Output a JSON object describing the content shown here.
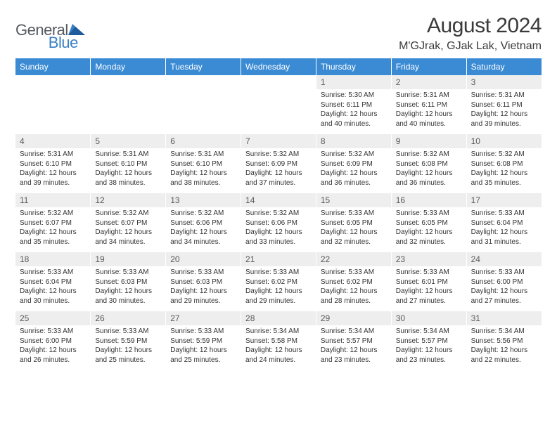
{
  "brand": {
    "part1": "General",
    "part2": "Blue"
  },
  "title": "August 2024",
  "location": "M'GJrak, GJak Lak, Vietnam",
  "colors": {
    "header_bg": "#3b8bd4",
    "header_text": "#ffffff",
    "num_bg": "#eeeeee",
    "num_text": "#5a5a5a",
    "body_text": "#333333",
    "brand_gray": "#555a5f",
    "brand_blue": "#3b7fc4",
    "page_bg": "#ffffff"
  },
  "typography": {
    "title_fontsize": 30,
    "location_fontsize": 16,
    "dayheader_fontsize": 12,
    "daynum_fontsize": 12,
    "body_fontsize": 10
  },
  "days": [
    "Sunday",
    "Monday",
    "Tuesday",
    "Wednesday",
    "Thursday",
    "Friday",
    "Saturday"
  ],
  "weeks": [
    {
      "nums": [
        "",
        "",
        "",
        "",
        "1",
        "2",
        "3"
      ],
      "cells": [
        null,
        null,
        null,
        null,
        {
          "sunrise": "5:30 AM",
          "sunset": "6:11 PM",
          "daylight": "12 hours and 40 minutes."
        },
        {
          "sunrise": "5:31 AM",
          "sunset": "6:11 PM",
          "daylight": "12 hours and 40 minutes."
        },
        {
          "sunrise": "5:31 AM",
          "sunset": "6:11 PM",
          "daylight": "12 hours and 39 minutes."
        }
      ]
    },
    {
      "nums": [
        "4",
        "5",
        "6",
        "7",
        "8",
        "9",
        "10"
      ],
      "cells": [
        {
          "sunrise": "5:31 AM",
          "sunset": "6:10 PM",
          "daylight": "12 hours and 39 minutes."
        },
        {
          "sunrise": "5:31 AM",
          "sunset": "6:10 PM",
          "daylight": "12 hours and 38 minutes."
        },
        {
          "sunrise": "5:31 AM",
          "sunset": "6:10 PM",
          "daylight": "12 hours and 38 minutes."
        },
        {
          "sunrise": "5:32 AM",
          "sunset": "6:09 PM",
          "daylight": "12 hours and 37 minutes."
        },
        {
          "sunrise": "5:32 AM",
          "sunset": "6:09 PM",
          "daylight": "12 hours and 36 minutes."
        },
        {
          "sunrise": "5:32 AM",
          "sunset": "6:08 PM",
          "daylight": "12 hours and 36 minutes."
        },
        {
          "sunrise": "5:32 AM",
          "sunset": "6:08 PM",
          "daylight": "12 hours and 35 minutes."
        }
      ]
    },
    {
      "nums": [
        "11",
        "12",
        "13",
        "14",
        "15",
        "16",
        "17"
      ],
      "cells": [
        {
          "sunrise": "5:32 AM",
          "sunset": "6:07 PM",
          "daylight": "12 hours and 35 minutes."
        },
        {
          "sunrise": "5:32 AM",
          "sunset": "6:07 PM",
          "daylight": "12 hours and 34 minutes."
        },
        {
          "sunrise": "5:32 AM",
          "sunset": "6:06 PM",
          "daylight": "12 hours and 34 minutes."
        },
        {
          "sunrise": "5:32 AM",
          "sunset": "6:06 PM",
          "daylight": "12 hours and 33 minutes."
        },
        {
          "sunrise": "5:33 AM",
          "sunset": "6:05 PM",
          "daylight": "12 hours and 32 minutes."
        },
        {
          "sunrise": "5:33 AM",
          "sunset": "6:05 PM",
          "daylight": "12 hours and 32 minutes."
        },
        {
          "sunrise": "5:33 AM",
          "sunset": "6:04 PM",
          "daylight": "12 hours and 31 minutes."
        }
      ]
    },
    {
      "nums": [
        "18",
        "19",
        "20",
        "21",
        "22",
        "23",
        "24"
      ],
      "cells": [
        {
          "sunrise": "5:33 AM",
          "sunset": "6:04 PM",
          "daylight": "12 hours and 30 minutes."
        },
        {
          "sunrise": "5:33 AM",
          "sunset": "6:03 PM",
          "daylight": "12 hours and 30 minutes."
        },
        {
          "sunrise": "5:33 AM",
          "sunset": "6:03 PM",
          "daylight": "12 hours and 29 minutes."
        },
        {
          "sunrise": "5:33 AM",
          "sunset": "6:02 PM",
          "daylight": "12 hours and 29 minutes."
        },
        {
          "sunrise": "5:33 AM",
          "sunset": "6:02 PM",
          "daylight": "12 hours and 28 minutes."
        },
        {
          "sunrise": "5:33 AM",
          "sunset": "6:01 PM",
          "daylight": "12 hours and 27 minutes."
        },
        {
          "sunrise": "5:33 AM",
          "sunset": "6:00 PM",
          "daylight": "12 hours and 27 minutes."
        }
      ]
    },
    {
      "nums": [
        "25",
        "26",
        "27",
        "28",
        "29",
        "30",
        "31"
      ],
      "cells": [
        {
          "sunrise": "5:33 AM",
          "sunset": "6:00 PM",
          "daylight": "12 hours and 26 minutes."
        },
        {
          "sunrise": "5:33 AM",
          "sunset": "5:59 PM",
          "daylight": "12 hours and 25 minutes."
        },
        {
          "sunrise": "5:33 AM",
          "sunset": "5:59 PM",
          "daylight": "12 hours and 25 minutes."
        },
        {
          "sunrise": "5:34 AM",
          "sunset": "5:58 PM",
          "daylight": "12 hours and 24 minutes."
        },
        {
          "sunrise": "5:34 AM",
          "sunset": "5:57 PM",
          "daylight": "12 hours and 23 minutes."
        },
        {
          "sunrise": "5:34 AM",
          "sunset": "5:57 PM",
          "daylight": "12 hours and 23 minutes."
        },
        {
          "sunrise": "5:34 AM",
          "sunset": "5:56 PM",
          "daylight": "12 hours and 22 minutes."
        }
      ]
    }
  ],
  "labels": {
    "sunrise": "Sunrise: ",
    "sunset": "Sunset: ",
    "daylight": "Daylight: "
  }
}
